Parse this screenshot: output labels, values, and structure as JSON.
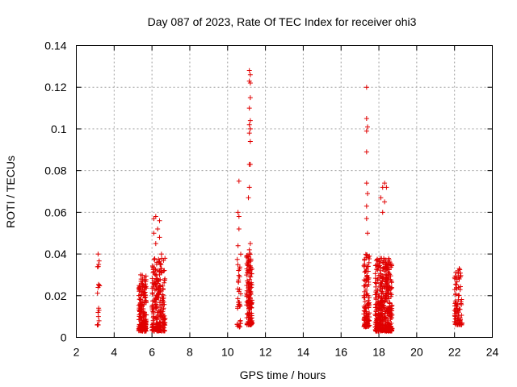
{
  "chart_data": {
    "type": "scatter",
    "title": "Day 087 of 2023, Rate Of TEC Index for receiver ohi3",
    "xlabel": "GPS time / hours",
    "ylabel": "ROTI / TECUs",
    "xlim": [
      2,
      24
    ],
    "ylim": [
      0,
      0.14
    ],
    "xticks": [
      "2",
      "4",
      "6",
      "8",
      "10",
      "12",
      "14",
      "16",
      "18",
      "20",
      "22",
      "24"
    ],
    "yticks": [
      "0",
      "0.02",
      "0.04",
      "0.06",
      "0.08",
      "0.1",
      "0.12",
      "0.14"
    ],
    "grid": true,
    "marker": "plus",
    "color": "#e00000",
    "clusters": [
      {
        "x_range": [
          3.1,
          3.25
        ],
        "y_range": [
          0.005,
          0.04
        ],
        "count": 18,
        "points": [
          [
            3.15,
            0.04
          ],
          [
            3.18,
            0.035
          ],
          [
            3.16,
            0.034
          ],
          [
            3.2,
            0.025
          ],
          [
            3.15,
            0.024
          ],
          [
            3.18,
            0.014
          ],
          [
            3.2,
            0.013
          ],
          [
            3.15,
            0.012
          ],
          [
            3.17,
            0.01
          ],
          [
            3.2,
            0.008
          ],
          [
            3.16,
            0.006
          ]
        ]
      },
      {
        "x_range": [
          5.3,
          5.7
        ],
        "y_range": [
          0.003,
          0.03
        ],
        "count": 180,
        "points": [
          [
            5.4,
            0.03
          ],
          [
            5.5,
            0.028
          ],
          [
            5.45,
            0.026
          ],
          [
            5.6,
            0.023
          ]
        ]
      },
      {
        "x_range": [
          6.0,
          6.7
        ],
        "y_range": [
          0.003,
          0.058
        ],
        "count": 260,
        "points": [
          [
            6.1,
            0.057
          ],
          [
            6.2,
            0.058
          ],
          [
            6.4,
            0.056
          ],
          [
            6.3,
            0.052
          ],
          [
            6.1,
            0.05
          ],
          [
            6.4,
            0.048
          ],
          [
            6.2,
            0.045
          ],
          [
            6.5,
            0.04
          ],
          [
            6.5,
            0.033
          ],
          [
            6.4,
            0.03
          ]
        ]
      },
      {
        "x_range": [
          10.5,
          10.7
        ],
        "y_range": [
          0.005,
          0.075
        ],
        "count": 40,
        "points": [
          [
            10.6,
            0.075
          ],
          [
            10.55,
            0.06
          ],
          [
            10.6,
            0.058
          ],
          [
            10.6,
            0.052
          ],
          [
            10.55,
            0.044
          ],
          [
            10.6,
            0.022
          ]
        ]
      },
      {
        "x_range": [
          11.0,
          11.3
        ],
        "y_range": [
          0.006,
          0.128
        ],
        "count": 160,
        "points": [
          [
            11.15,
            0.128
          ],
          [
            11.2,
            0.126
          ],
          [
            11.15,
            0.123
          ],
          [
            11.2,
            0.122
          ],
          [
            11.2,
            0.115
          ],
          [
            11.15,
            0.11
          ],
          [
            11.2,
            0.104
          ],
          [
            11.15,
            0.102
          ],
          [
            11.2,
            0.1
          ],
          [
            11.15,
            0.098
          ],
          [
            11.2,
            0.094
          ],
          [
            11.15,
            0.083
          ],
          [
            11.2,
            0.083
          ],
          [
            11.15,
            0.072
          ],
          [
            11.1,
            0.067
          ],
          [
            11.2,
            0.045
          ],
          [
            11.15,
            0.042
          ]
        ]
      },
      {
        "x_range": [
          17.2,
          17.5
        ],
        "y_range": [
          0.005,
          0.12
        ],
        "count": 120,
        "points": [
          [
            17.35,
            0.12
          ],
          [
            17.35,
            0.105
          ],
          [
            17.4,
            0.101
          ],
          [
            17.35,
            0.099
          ],
          [
            17.35,
            0.089
          ],
          [
            17.35,
            0.074
          ],
          [
            17.4,
            0.069
          ],
          [
            17.35,
            0.063
          ],
          [
            17.35,
            0.057
          ],
          [
            17.4,
            0.05
          ]
        ]
      },
      {
        "x_range": [
          17.8,
          18.7
        ],
        "y_range": [
          0.003,
          0.074
        ],
        "count": 420,
        "points": [
          [
            18.3,
            0.074
          ],
          [
            18.2,
            0.072
          ],
          [
            18.4,
            0.072
          ],
          [
            18.1,
            0.067
          ],
          [
            18.3,
            0.065
          ],
          [
            18.2,
            0.06
          ]
        ]
      },
      {
        "x_range": [
          22.0,
          22.4
        ],
        "y_range": [
          0.006,
          0.033
        ],
        "count": 90,
        "points": [
          [
            22.25,
            0.033
          ],
          [
            22.2,
            0.031
          ],
          [
            22.3,
            0.029
          ]
        ]
      }
    ]
  }
}
